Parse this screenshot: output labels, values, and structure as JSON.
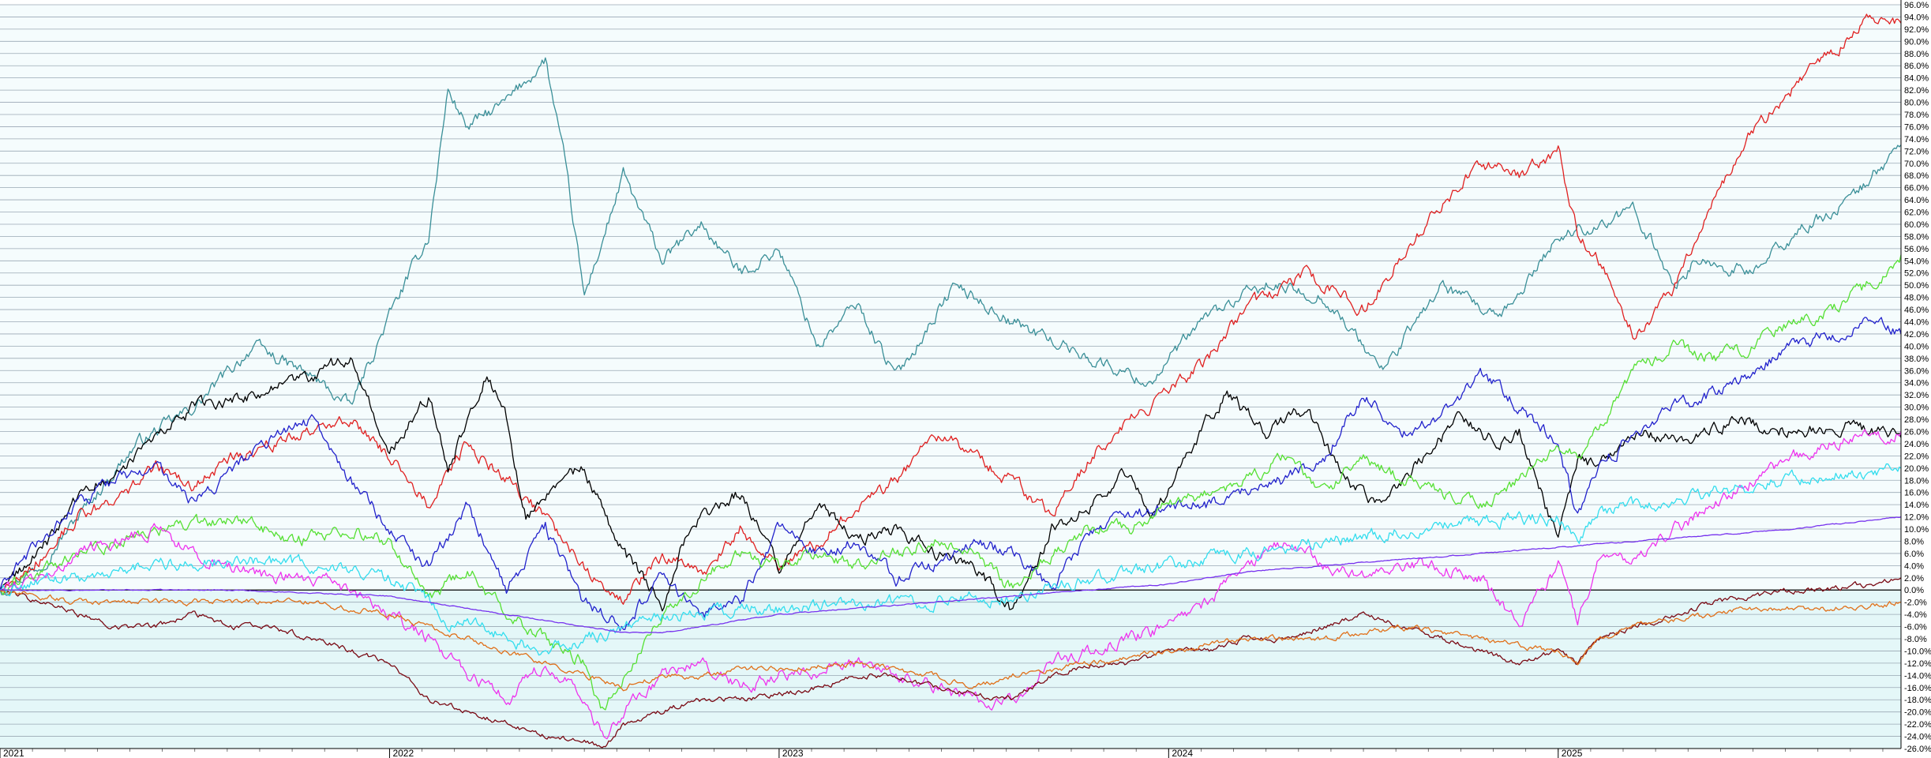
{
  "chart_data": {
    "type": "line",
    "title": "",
    "xlabel": "",
    "ylabel": "",
    "xlim": [
      2021.0,
      2025.88
    ],
    "ylim": [
      -27,
      97
    ],
    "grid": true,
    "y_ticks": [
      "96.0%",
      "94.0%",
      "92.0%",
      "90.0%",
      "88.0%",
      "86.0%",
      "84.0%",
      "82.0%",
      "80.0%",
      "78.0%",
      "76.0%",
      "74.0%",
      "72.0%",
      "70.0%",
      "68.0%",
      "66.0%",
      "64.0%",
      "62.0%",
      "60.0%",
      "58.0%",
      "56.0%",
      "54.0%",
      "52.0%",
      "50.0%",
      "48.0%",
      "46.0%",
      "44.0%",
      "42.0%",
      "40.0%",
      "38.0%",
      "36.0%",
      "34.0%",
      "32.0%",
      "30.0%",
      "28.0%",
      "26.0%",
      "24.0%",
      "22.0%",
      "20.0%",
      "18.0%",
      "16.0%",
      "14.0%",
      "12.0%",
      "10.0%",
      "8.0%",
      "6.0%",
      "4.0%",
      "2.0%",
      "0.0%",
      "-2.0%",
      "-4.0%",
      "-6.0%",
      "-8.0%",
      "-10.0%",
      "-12.0%",
      "-14.0%",
      "-16.0%",
      "-18.0%",
      "-20.0%",
      "-22.0%",
      "-24.0%",
      "-26.0%"
    ],
    "x_ticks": [
      "2021",
      "2022",
      "2023",
      "2024",
      "2025"
    ],
    "series": [
      {
        "color": "#3a8f98",
        "x": [
          2021.0,
          2021.1,
          2021.2,
          2021.35,
          2021.5,
          2021.65,
          2021.8,
          2021.9,
          2022.0,
          2022.1,
          2022.15,
          2022.2,
          2022.3,
          2022.4,
          2022.45,
          2022.5,
          2022.6,
          2022.7,
          2022.8,
          2022.9,
          2023.0,
          2023.1,
          2023.2,
          2023.3,
          2023.45,
          2023.6,
          2023.8,
          2023.95,
          2024.1,
          2024.25,
          2024.4,
          2024.55,
          2024.7,
          2024.85,
          2025.0,
          2025.2,
          2025.3,
          2025.35,
          2025.5,
          2025.6,
          2025.75,
          2025.88
        ],
        "y": [
          0,
          4,
          12,
          24,
          30,
          40,
          35,
          30,
          45,
          58,
          82,
          76,
          80,
          87,
          70,
          48,
          68,
          54,
          60,
          52,
          56,
          40,
          47,
          35,
          50,
          44,
          38,
          34,
          45,
          50,
          48,
          36,
          50,
          44,
          58,
          62,
          50,
          54,
          52,
          58,
          64,
          73
        ]
      },
      {
        "color": "#e02020",
        "x": [
          2021.0,
          2021.1,
          2021.2,
          2021.3,
          2021.4,
          2021.5,
          2021.6,
          2021.7,
          2021.8,
          2021.9,
          2022.0,
          2022.1,
          2022.2,
          2022.3,
          2022.4,
          2022.5,
          2022.6,
          2022.7,
          2022.8,
          2022.9,
          2023.0,
          2023.1,
          2023.2,
          2023.3,
          2023.4,
          2023.5,
          2023.6,
          2023.7,
          2023.8,
          2023.9,
          2024.0,
          2024.1,
          2024.2,
          2024.35,
          2024.5,
          2024.6,
          2024.7,
          2024.8,
          2024.9,
          2025.0,
          2025.05,
          2025.1,
          2025.2,
          2025.3,
          2025.4,
          2025.5,
          2025.6,
          2025.7,
          2025.8,
          2025.88
        ],
        "y": [
          0,
          5,
          12,
          15,
          20,
          17,
          22,
          24,
          26,
          28,
          22,
          14,
          24,
          18,
          12,
          4,
          -2,
          6,
          2,
          10,
          4,
          8,
          14,
          18,
          26,
          22,
          18,
          12,
          22,
          28,
          32,
          38,
          46,
          52,
          46,
          55,
          63,
          70,
          68,
          72,
          58,
          55,
          41,
          50,
          65,
          75,
          82,
          88,
          94,
          93
        ]
      },
      {
        "color": "#000000",
        "x": [
          2021.0,
          2021.1,
          2021.2,
          2021.35,
          2021.5,
          2021.65,
          2021.8,
          2021.9,
          2022.0,
          2022.1,
          2022.15,
          2022.25,
          2022.3,
          2022.35,
          2022.45,
          2022.5,
          2022.6,
          2022.7,
          2022.75,
          2022.8,
          2022.9,
          2023.0,
          2023.1,
          2023.2,
          2023.3,
          2023.4,
          2023.5,
          2023.6,
          2023.7,
          2023.8,
          2023.9,
          2023.95,
          2024.0,
          2024.1,
          2024.15,
          2024.25,
          2024.35,
          2024.45,
          2024.55,
          2024.65,
          2024.75,
          2024.85,
          2024.9,
          2025.0,
          2025.05,
          2025.1,
          2025.2,
          2025.3,
          2025.45,
          2025.6,
          2025.75,
          2025.88
        ],
        "y": [
          0,
          6,
          15,
          22,
          30,
          32,
          35,
          38,
          22,
          32,
          20,
          36,
          28,
          12,
          18,
          20,
          6,
          -2,
          8,
          12,
          16,
          4,
          14,
          8,
          10,
          6,
          4,
          -4,
          10,
          14,
          20,
          12,
          16,
          28,
          32,
          26,
          30,
          18,
          14,
          22,
          28,
          24,
          26,
          8,
          22,
          20,
          26,
          24,
          28,
          26,
          27,
          25
        ]
      },
      {
        "color": "#2222cc",
        "x": [
          2021.0,
          2021.1,
          2021.2,
          2021.3,
          2021.4,
          2021.5,
          2021.6,
          2021.7,
          2021.8,
          2021.9,
          2022.0,
          2022.1,
          2022.2,
          2022.3,
          2022.4,
          2022.5,
          2022.6,
          2022.7,
          2022.8,
          2022.9,
          2023.0,
          2023.1,
          2023.2,
          2023.3,
          2023.4,
          2023.5,
          2023.6,
          2023.7,
          2023.8,
          2023.9,
          2024.0,
          2024.1,
          2024.2,
          2024.3,
          2024.4,
          2024.5,
          2024.6,
          2024.7,
          2024.8,
          2024.9,
          2025.0,
          2025.05,
          2025.1,
          2025.2,
          2025.3,
          2025.4,
          2025.5,
          2025.6,
          2025.7,
          2025.8,
          2025.88
        ],
        "y": [
          0,
          8,
          14,
          18,
          20,
          14,
          20,
          25,
          28,
          18,
          10,
          4,
          14,
          0,
          10,
          -2,
          -6,
          2,
          -4,
          -2,
          10,
          6,
          8,
          2,
          4,
          8,
          6,
          0,
          10,
          12,
          14,
          14,
          16,
          18,
          22,
          32,
          26,
          28,
          36,
          30,
          24,
          12,
          20,
          26,
          30,
          32,
          36,
          40,
          42,
          44,
          42
        ]
      },
      {
        "color": "#55e033",
        "x": [
          2021.0,
          2021.15,
          2021.3,
          2021.45,
          2021.6,
          2021.75,
          2021.9,
          2022.0,
          2022.1,
          2022.2,
          2022.3,
          2022.4,
          2022.5,
          2022.55,
          2022.6,
          2022.7,
          2022.8,
          2022.9,
          2023.0,
          2023.1,
          2023.2,
          2023.3,
          2023.4,
          2023.5,
          2023.6,
          2023.7,
          2023.8,
          2023.9,
          2024.0,
          2024.1,
          2024.2,
          2024.3,
          2024.4,
          2024.5,
          2024.6,
          2024.7,
          2024.8,
          2024.9,
          2025.0,
          2025.05,
          2025.1,
          2025.2,
          2025.3,
          2025.4,
          2025.5,
          2025.6,
          2025.7,
          2025.8,
          2025.88
        ],
        "y": [
          0,
          4,
          8,
          10,
          12,
          8,
          10,
          8,
          -2,
          4,
          -4,
          -8,
          -12,
          -20,
          -14,
          -4,
          2,
          6,
          4,
          6,
          4,
          6,
          8,
          6,
          0,
          6,
          10,
          10,
          14,
          16,
          18,
          22,
          16,
          22,
          18,
          16,
          14,
          18,
          24,
          22,
          26,
          36,
          40,
          38,
          40,
          44,
          46,
          50,
          55
        ]
      },
      {
        "color": "#ee33ee",
        "x": [
          2021.0,
          2021.1,
          2021.2,
          2021.3,
          2021.4,
          2021.5,
          2021.6,
          2021.7,
          2021.8,
          2021.9,
          2022.0,
          2022.1,
          2022.2,
          2022.3,
          2022.4,
          2022.5,
          2022.55,
          2022.6,
          2022.7,
          2022.8,
          2022.9,
          2023.0,
          2023.1,
          2023.2,
          2023.3,
          2023.4,
          2023.5,
          2023.6,
          2023.7,
          2023.8,
          2023.9,
          2024.0,
          2024.1,
          2024.2,
          2024.3,
          2024.4,
          2024.5,
          2024.6,
          2024.7,
          2024.8,
          2024.9,
          2025.0,
          2025.05,
          2025.1,
          2025.2,
          2025.3,
          2025.4,
          2025.5,
          2025.6,
          2025.7,
          2025.8,
          2025.88
        ],
        "y": [
          0,
          2,
          6,
          8,
          10,
          6,
          4,
          2,
          2,
          0,
          -4,
          -8,
          -14,
          -18,
          -12,
          -18,
          -24,
          -20,
          -14,
          -12,
          -16,
          -14,
          -13,
          -12,
          -14,
          -16,
          -18,
          -18,
          -12,
          -10,
          -8,
          -6,
          -2,
          4,
          8,
          4,
          2,
          4,
          4,
          2,
          -6,
          4,
          -6,
          4,
          6,
          10,
          14,
          18,
          22,
          24,
          25,
          26
        ]
      },
      {
        "color": "#7a0a14",
        "x": [
          2021.0,
          2021.1,
          2021.2,
          2021.3,
          2021.4,
          2021.5,
          2021.6,
          2021.7,
          2021.8,
          2021.9,
          2022.0,
          2022.1,
          2022.2,
          2022.3,
          2022.4,
          2022.5,
          2022.55,
          2022.6,
          2022.7,
          2022.8,
          2022.9,
          2023.0,
          2023.1,
          2023.2,
          2023.3,
          2023.4,
          2023.5,
          2023.6,
          2023.7,
          2023.8,
          2023.9,
          2024.0,
          2024.1,
          2024.2,
          2024.3,
          2024.4,
          2024.5,
          2024.6,
          2024.7,
          2024.8,
          2024.9,
          2025.0,
          2025.05,
          2025.1,
          2025.2,
          2025.3,
          2025.4,
          2025.5,
          2025.6,
          2025.7,
          2025.8,
          2025.88
        ],
        "y": [
          0,
          -2,
          -4,
          -6,
          -6,
          -4,
          -6,
          -6,
          -8,
          -10,
          -12,
          -18,
          -20,
          -22,
          -24,
          -25,
          -26,
          -22,
          -20,
          -18,
          -18,
          -17,
          -16,
          -14,
          -14,
          -16,
          -17,
          -18,
          -14,
          -12,
          -12,
          -10,
          -10,
          -8,
          -8,
          -6,
          -4,
          -6,
          -8,
          -10,
          -12,
          -10,
          -12,
          -8,
          -6,
          -4,
          -2,
          -1,
          0,
          0,
          1,
          2
        ]
      },
      {
        "color": "#e0701a",
        "x": [
          2021.0,
          2021.2,
          2021.4,
          2021.6,
          2021.8,
          2022.0,
          2022.1,
          2022.2,
          2022.3,
          2022.4,
          2022.5,
          2022.6,
          2022.7,
          2022.8,
          2022.9,
          2023.0,
          2023.2,
          2023.4,
          2023.5,
          2023.6,
          2023.8,
          2024.0,
          2024.2,
          2024.4,
          2024.6,
          2024.8,
          2025.0,
          2025.05,
          2025.1,
          2025.2,
          2025.3,
          2025.4,
          2025.5,
          2025.6,
          2025.7,
          2025.88
        ],
        "y": [
          0,
          -2,
          -2,
          -2,
          -2,
          -4,
          -6,
          -8,
          -10,
          -12,
          -14,
          -16,
          -14,
          -14,
          -13,
          -13,
          -12,
          -14,
          -16,
          -14,
          -12,
          -10,
          -8,
          -8,
          -6,
          -8,
          -10,
          -12,
          -8,
          -6,
          -5,
          -4,
          -3,
          -3,
          -3,
          -2
        ]
      },
      {
        "color": "#33ddee",
        "x": [
          2021.0,
          2021.2,
          2021.4,
          2021.6,
          2021.8,
          2022.0,
          2022.1,
          2022.15,
          2022.2,
          2022.3,
          2022.4,
          2022.5,
          2022.6,
          2022.7,
          2022.8,
          2022.9,
          2023.0,
          2023.2,
          2023.4,
          2023.6,
          2023.8,
          2024.0,
          2024.2,
          2024.4,
          2024.6,
          2024.8,
          2025.0,
          2025.05,
          2025.1,
          2025.2,
          2025.3,
          2025.4,
          2025.5,
          2025.6,
          2025.7,
          2025.88
        ],
        "y": [
          0,
          2,
          4,
          5,
          4,
          2,
          -2,
          -6,
          -4,
          -8,
          -10,
          -8,
          -6,
          -4,
          -4,
          -3,
          -3,
          -2,
          -2,
          -1,
          2,
          4,
          6,
          8,
          10,
          11,
          12,
          8,
          13,
          14,
          15,
          16,
          17,
          18,
          19,
          20
        ]
      },
      {
        "color": "#7733ee",
        "x": [
          2021.0,
          2021.2,
          2021.4,
          2021.6,
          2021.8,
          2022.0,
          2022.1,
          2022.2,
          2022.3,
          2022.4,
          2022.5,
          2022.6,
          2022.7,
          2022.8,
          2022.9,
          2023.0,
          2023.2,
          2023.4,
          2023.6,
          2023.8,
          2024.0,
          2024.2,
          2024.4,
          2024.6,
          2024.8,
          2025.0,
          2025.2,
          2025.4,
          2025.6,
          2025.88
        ],
        "y": [
          0,
          0,
          0,
          0,
          -0.5,
          -1,
          -2,
          -3,
          -4,
          -5,
          -6,
          -7,
          -7,
          -6,
          -5,
          -4,
          -3,
          -2,
          -1,
          0,
          1,
          3,
          4,
          5,
          6,
          7,
          8,
          9,
          10,
          12
        ]
      }
    ]
  }
}
